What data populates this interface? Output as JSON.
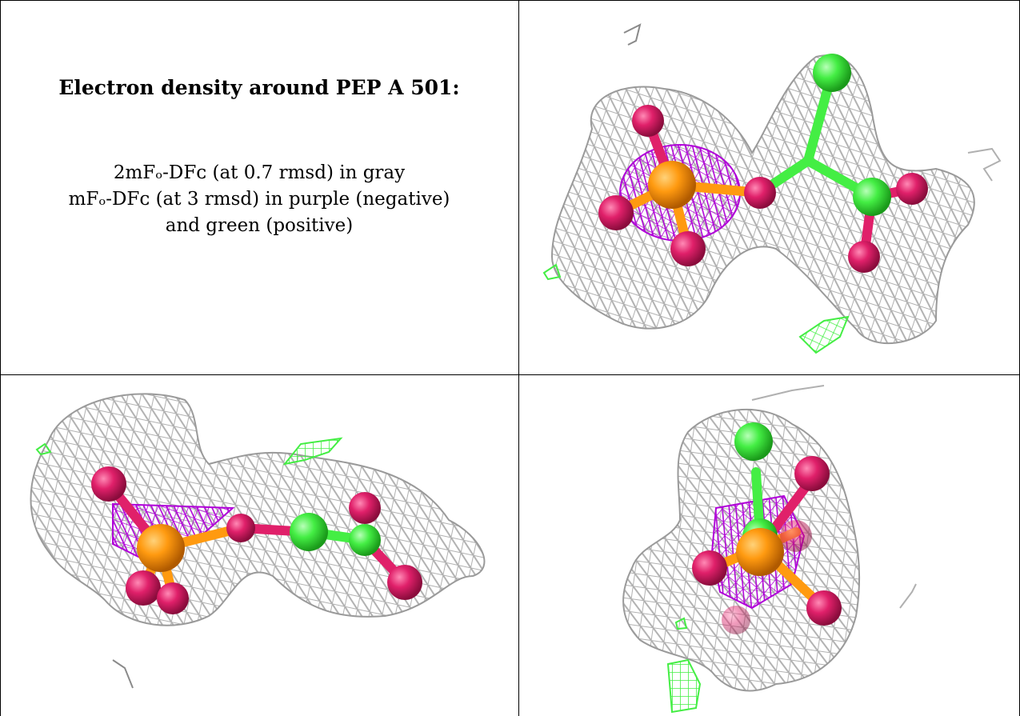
{
  "caption": {
    "title": "Electron density around PEP A 501:",
    "line1": "2mFₒ-DFᴄ (at 0.7 rmsd) in gray",
    "line2": "mFₒ-DFᴄ (at 3 rmsd) in purple (negative)",
    "line3": "and green (positive)"
  },
  "colors": {
    "mesh_gray": "#b8b8b8",
    "mesh_purple": "#b000d8",
    "mesh_green": "#44ee44",
    "atom_oxygen": "#e0206a",
    "atom_phosphorus": "#ff9a10",
    "atom_carbon": "#44ee44"
  },
  "panels": [
    "view-top-right",
    "view-bottom-left",
    "view-bottom-right"
  ]
}
